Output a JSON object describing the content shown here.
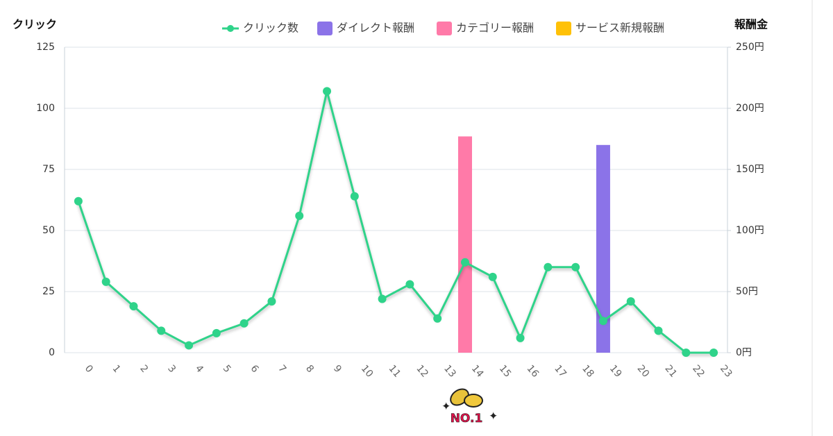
{
  "chart_data": {
    "type": "line",
    "y_label": "クリック",
    "y2_label": "報酬金",
    "badge": "NO.1",
    "categories": [
      "0",
      "1",
      "2",
      "3",
      "4",
      "5",
      "6",
      "7",
      "8",
      "9",
      "10",
      "11",
      "12",
      "13",
      "14",
      "15",
      "16",
      "17",
      "18",
      "19",
      "20",
      "21",
      "22",
      "23"
    ],
    "series": [
      {
        "name": "クリック数",
        "type": "line",
        "color": "#2fd38a",
        "values": [
          62,
          29,
          19,
          9,
          3,
          8,
          12,
          21,
          56,
          107,
          64,
          22,
          28,
          14,
          37,
          31,
          6,
          35,
          35,
          13,
          21,
          9,
          0,
          0
        ]
      },
      {
        "name": "ダイレクト報酬",
        "type": "bar",
        "axis": "y2",
        "color": "#8b73e8",
        "values": [
          null,
          null,
          null,
          null,
          null,
          null,
          null,
          null,
          null,
          null,
          null,
          null,
          null,
          null,
          null,
          null,
          null,
          null,
          null,
          170,
          null,
          null,
          null,
          null
        ]
      },
      {
        "name": "カテゴリー報酬",
        "type": "bar",
        "axis": "y2",
        "color": "#ff7aa8",
        "values": [
          null,
          null,
          null,
          null,
          null,
          null,
          null,
          null,
          null,
          null,
          null,
          null,
          null,
          null,
          177,
          null,
          null,
          null,
          null,
          null,
          null,
          null,
          null,
          null
        ]
      },
      {
        "name": "サービス新規報酬",
        "type": "bar",
        "axis": "y2",
        "color": "#ffc107",
        "values": [
          null,
          null,
          null,
          null,
          null,
          null,
          null,
          null,
          null,
          null,
          null,
          null,
          null,
          null,
          null,
          null,
          null,
          null,
          null,
          null,
          null,
          null,
          null,
          null
        ]
      }
    ],
    "ylim": [
      0,
      125
    ],
    "yticks": [
      0,
      25,
      50,
      75,
      100,
      125
    ],
    "y2lim": [
      0,
      250
    ],
    "y2ticks": [
      {
        "value": 0,
        "label": "0円"
      },
      {
        "value": 50,
        "label": "50円"
      },
      {
        "value": 100,
        "label": "100円"
      },
      {
        "value": 150,
        "label": "150円"
      },
      {
        "value": 200,
        "label": "200円"
      },
      {
        "value": 250,
        "label": "250円"
      }
    ],
    "grid": true
  }
}
